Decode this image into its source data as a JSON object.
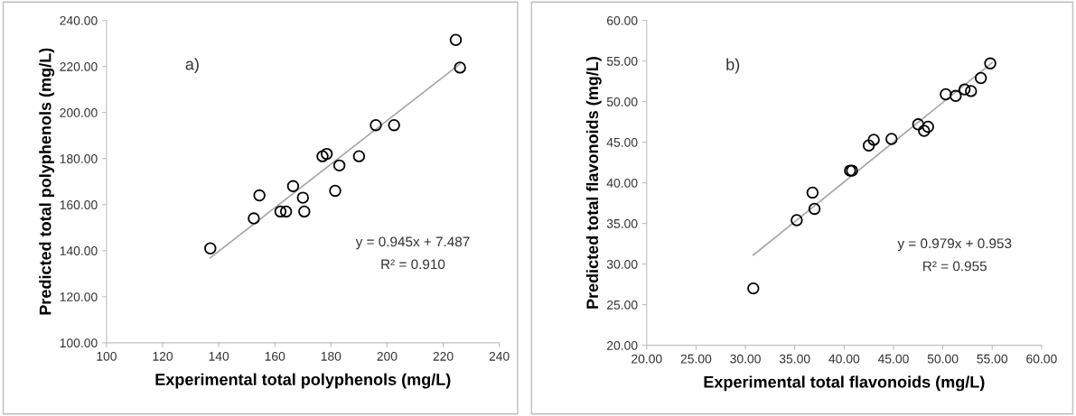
{
  "chart_data": [
    {
      "type": "scatter",
      "xlabel": "Experimental total polyphenols (mg/L)",
      "ylabel": "Predicted total polyphenols (mg/L)",
      "annotations": [
        "a)",
        "y = 0.945x + 7.487",
        "R² = 0.910"
      ],
      "xlim": [
        100,
        240
      ],
      "xticks": [
        100,
        120,
        140,
        160,
        180,
        200,
        220,
        240
      ],
      "ylim": [
        100,
        240
      ],
      "yticks": [
        {
          "value": 100,
          "label": "100.00"
        },
        {
          "value": 120,
          "label": "120.00"
        },
        {
          "value": 140,
          "label": "140.00"
        },
        {
          "value": 160,
          "label": "160.00"
        },
        {
          "value": 180,
          "label": "180.00"
        },
        {
          "value": 200,
          "label": "200.00"
        },
        {
          "value": 220,
          "label": "220.00"
        },
        {
          "value": 240,
          "label": "240.00"
        }
      ],
      "grid": false,
      "legend": false,
      "series": [
        {
          "marker": "circle",
          "color": "#000000",
          "x": [
            137,
            152.5,
            154.5,
            162,
            164,
            166.5,
            170,
            170.5,
            177,
            178.5,
            181.5,
            183,
            190,
            196,
            202.5,
            224.5,
            226
          ],
          "values": [
            141,
            154,
            164,
            157,
            157,
            168,
            163,
            157,
            181,
            182,
            166,
            177,
            181,
            194.5,
            194.5,
            231.5,
            219.5
          ]
        },
        {
          "type": "line",
          "color": "#a6a6a6",
          "x": [
            137,
            226
          ],
          "values": [
            136.9,
            221.1
          ]
        }
      ]
    },
    {
      "type": "scatter",
      "xlabel": "Experimental total flavonoids (mg/L)",
      "ylabel": "Predicted total flavonoids (mg/L)",
      "annotations": [
        "b)",
        "y = 0.979x + 0.953",
        "R² = 0.955"
      ],
      "xlim": [
        20,
        60
      ],
      "xticks": [
        {
          "value": 20,
          "label": "20.00"
        },
        {
          "value": 25,
          "label": "25.00"
        },
        {
          "value": 30,
          "label": "30.00"
        },
        {
          "value": 35,
          "label": "35.00"
        },
        {
          "value": 40,
          "label": "40.00"
        },
        {
          "value": 45,
          "label": "45.00"
        },
        {
          "value": 50,
          "label": "50.00"
        },
        {
          "value": 55,
          "label": "55.00"
        },
        {
          "value": 60,
          "label": "60.00"
        }
      ],
      "ylim": [
        20,
        60
      ],
      "yticks": [
        {
          "value": 20,
          "label": "20.00"
        },
        {
          "value": 25,
          "label": "25.00"
        },
        {
          "value": 30,
          "label": "30.00"
        },
        {
          "value": 35,
          "label": "35.00"
        },
        {
          "value": 40,
          "label": "40.00"
        },
        {
          "value": 45,
          "label": "45.00"
        },
        {
          "value": 50,
          "label": "50.00"
        },
        {
          "value": 55,
          "label": "55.00"
        },
        {
          "value": 60,
          "label": "60.00"
        }
      ],
      "grid": false,
      "legend": false,
      "series": [
        {
          "marker": "circle",
          "color": "#000000",
          "x": [
            30.8,
            35.2,
            36.8,
            37,
            40.6,
            40.8,
            42.5,
            43,
            44.8,
            47.5,
            48.1,
            48.5,
            50.3,
            51.3,
            52.2,
            52.85,
            53.85,
            54.8
          ],
          "values": [
            27,
            35.4,
            38.8,
            36.8,
            41.5,
            41.5,
            44.6,
            45.3,
            45.4,
            47.2,
            46.4,
            46.9,
            50.9,
            50.7,
            51.5,
            51.3,
            52.9,
            54.7
          ]
        },
        {
          "type": "line",
          "color": "#a6a6a6",
          "x": [
            30.8,
            55
          ],
          "values": [
            31.1,
            54.8
          ]
        }
      ]
    }
  ]
}
